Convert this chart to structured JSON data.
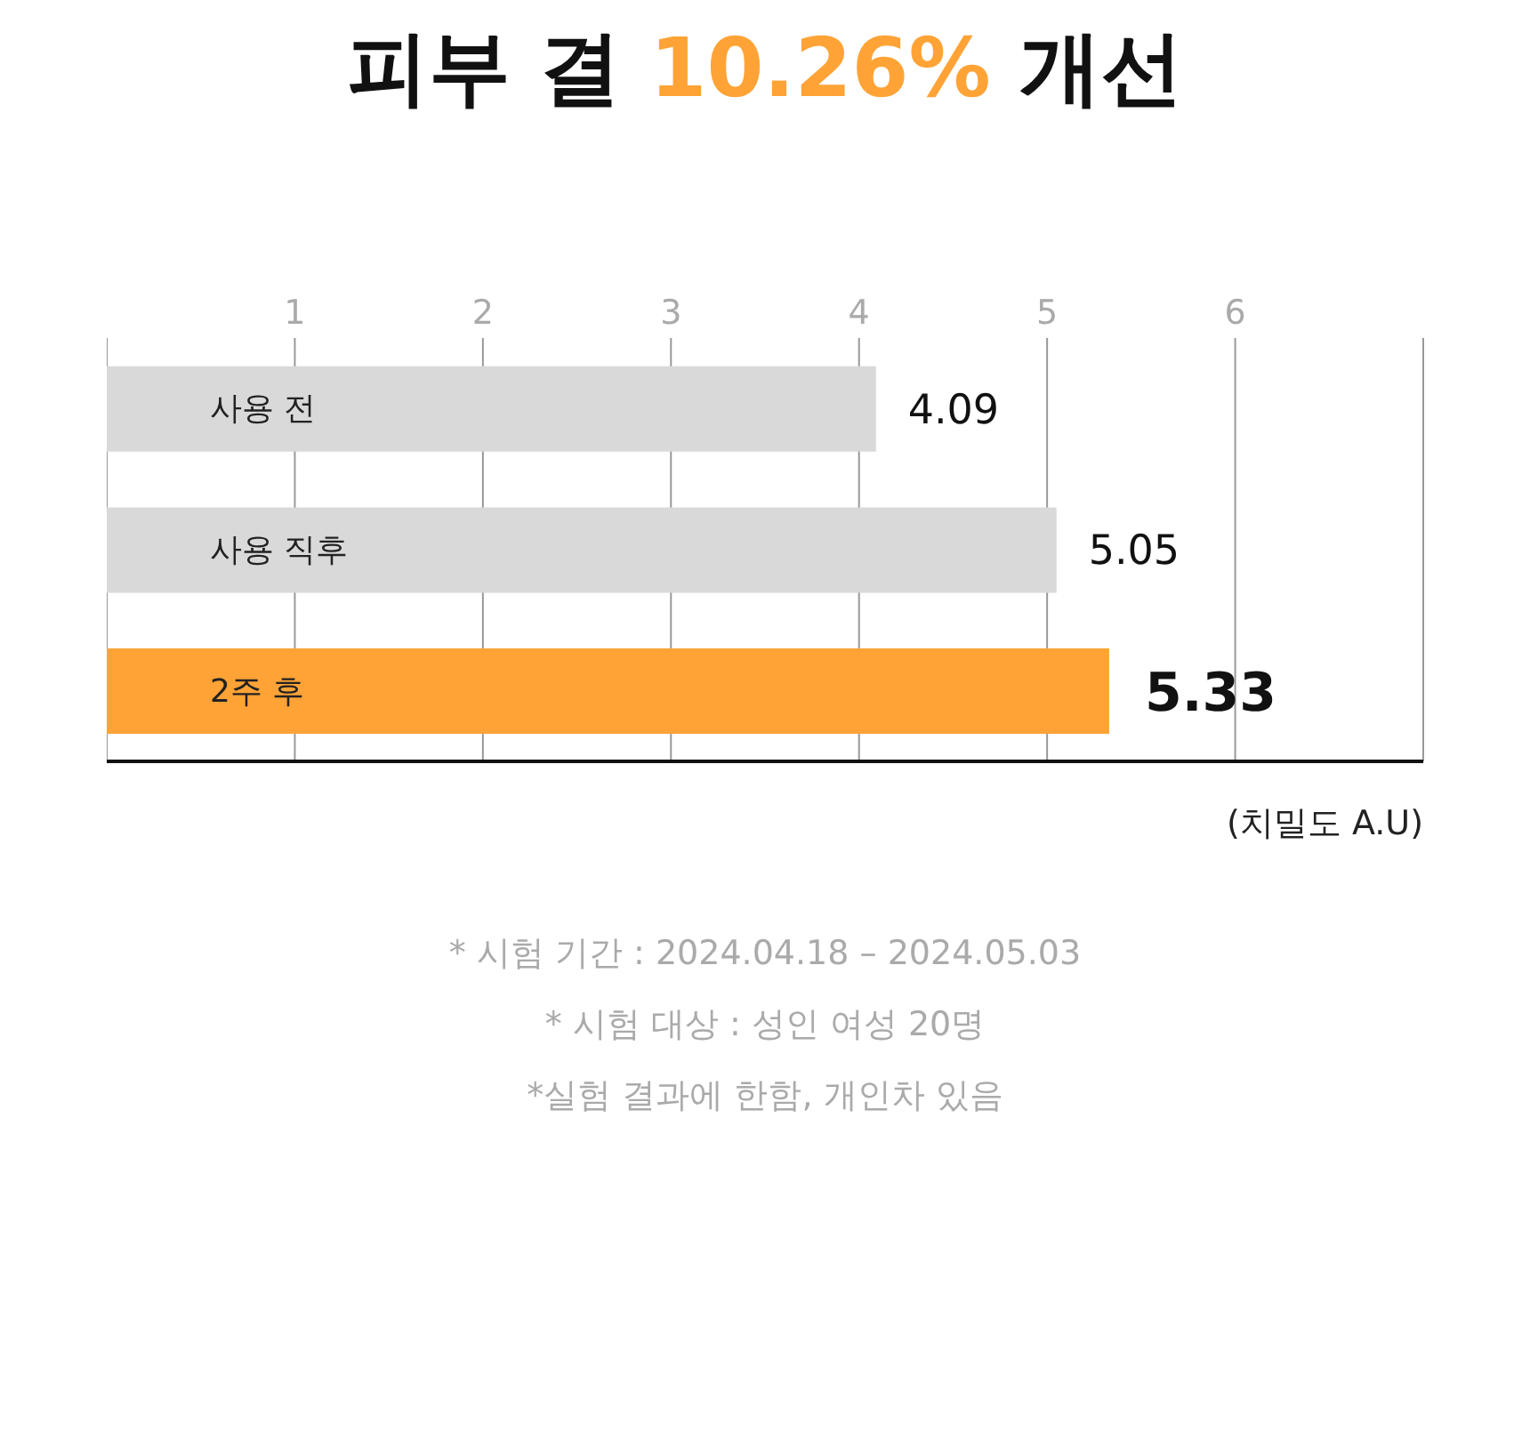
{
  "chart_data": {
    "type": "bar",
    "orientation": "horizontal",
    "title": "피부 결 10.26% 개선",
    "xlabel": "(치밀도 A.U)",
    "categories": [
      "사용 전",
      "사용 직후",
      "2주 후"
    ],
    "values": [
      4.09,
      5.05,
      5.33
    ],
    "colors": [
      "#d9d9d9",
      "#d9d9d9",
      "#ffa336"
    ],
    "xlim": [
      0,
      7
    ],
    "xticks": [
      1,
      2,
      3,
      4,
      5,
      6
    ],
    "grid": "x",
    "data_labels": true,
    "legend": false,
    "annotations": [
      "* 시험 기간 : 2024.04.18 – 2024.05.03",
      "* 시험 대상 : 성인 여성 20명",
      "*실험 결과에 한함, 개인차 있음"
    ]
  }
}
